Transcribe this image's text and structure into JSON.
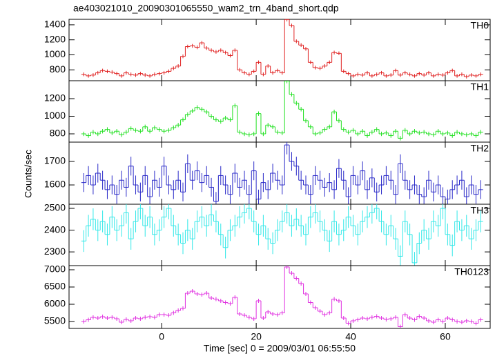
{
  "chart_data": {
    "type": "step",
    "title": "ae403021010_20090301065550_wam2_trn_4band_short.qdp",
    "xlabel": "Time [sec] 0 = 2009/03/01 06:55:50",
    "ylabel": "Counts/sec",
    "xlim": [
      -19.6,
      69.5
    ],
    "xticks": [
      0,
      20,
      40,
      60
    ],
    "x": [
      -16.5,
      -15.5,
      -14.5,
      -13.5,
      -12.5,
      -11.5,
      -10.5,
      -9.5,
      -8.5,
      -7.5,
      -6.5,
      -5.5,
      -4.5,
      -3.5,
      -2.5,
      -1.5,
      -0.5,
      0.5,
      1.5,
      2.5,
      3.5,
      4.5,
      5.5,
      6.5,
      7.5,
      8.5,
      9.5,
      10.5,
      11.5,
      12.5,
      13.5,
      14.5,
      15.5,
      16.5,
      17.5,
      18.5,
      19.5,
      20.5,
      21.5,
      22.5,
      23.5,
      24.5,
      25.5,
      26.5,
      27.5,
      28.5,
      29.5,
      30.5,
      31.5,
      32.5,
      33.5,
      34.5,
      35.5,
      36.5,
      37.5,
      38.5,
      39.5,
      40.5,
      41.5,
      42.5,
      43.5,
      44.5,
      45.5,
      46.5,
      47.5,
      48.5,
      49.5,
      50.5,
      51.5,
      52.5,
      53.5,
      54.5,
      55.5,
      56.5,
      57.5,
      58.5,
      59.5,
      60.5,
      61.5,
      62.5,
      63.5,
      64.5,
      65.5,
      66.5,
      67.5
    ],
    "panels": [
      {
        "name": "TH0",
        "color": "#e02020",
        "ylim": [
          655,
          1473
        ],
        "yticks": [
          800,
          1000,
          1200,
          1400
        ],
        "error": 25,
        "values": [
          740,
          720,
          730,
          760,
          790,
          780,
          770,
          750,
          720,
          760,
          740,
          730,
          750,
          730,
          720,
          740,
          750,
          760,
          780,
          820,
          850,
          980,
          1110,
          1120,
          1100,
          1160,
          1090,
          1060,
          1040,
          1060,
          1030,
          990,
          1060,
          800,
          760,
          740,
          780,
          900,
          740,
          850,
          760,
          790,
          760,
          1470,
          1390,
          1180,
          1130,
          1080,
          900,
          830,
          820,
          850,
          900,
          1030,
          1020,
          780,
          750,
          720,
          740,
          730,
          760,
          720,
          740,
          760,
          720,
          730,
          790,
          730,
          760,
          740,
          720,
          750,
          730,
          760,
          720,
          740,
          730,
          760,
          790,
          720,
          740,
          710,
          730,
          720,
          740
        ]
      },
      {
        "name": "TH1",
        "color": "#20e020",
        "ylim": [
          706,
          1404
        ],
        "yticks": [
          800,
          1000,
          1200
        ],
        "error": 25,
        "values": [
          800,
          780,
          820,
          800,
          830,
          850,
          810,
          830,
          790,
          820,
          860,
          840,
          830,
          880,
          830,
          870,
          850,
          830,
          840,
          870,
          900,
          960,
          1020,
          1060,
          1100,
          1080,
          1050,
          1000,
          960,
          940,
          980,
          960,
          1120,
          820,
          800,
          790,
          800,
          1030,
          800,
          900,
          880,
          820,
          810,
          1400,
          1250,
          1150,
          1080,
          950,
          880,
          800,
          810,
          850,
          880,
          1050,
          950,
          850,
          820,
          840,
          800,
          830,
          780,
          820,
          850,
          800,
          810,
          780,
          830,
          750,
          840,
          800,
          830,
          810,
          820,
          800,
          790,
          830,
          800,
          810,
          780,
          820,
          800,
          790,
          800,
          780,
          820
        ]
      },
      {
        "name": "TH2",
        "color": "#2828c8",
        "ylim": [
          1518,
          1782
        ],
        "yticks": [
          1600,
          1700
        ],
        "error": 40,
        "values": [
          1610,
          1640,
          1600,
          1650,
          1620,
          1580,
          1600,
          1560,
          1620,
          1590,
          1680,
          1600,
          1570,
          1640,
          1550,
          1620,
          1590,
          1680,
          1600,
          1580,
          1620,
          1570,
          1690,
          1620,
          1660,
          1610,
          1640,
          1590,
          1530,
          1640,
          1600,
          1560,
          1650,
          1590,
          1620,
          1560,
          1660,
          1540,
          1610,
          1580,
          1650,
          1620,
          1600,
          1770,
          1700,
          1680,
          1620,
          1600,
          1560,
          1640,
          1620,
          1590,
          1610,
          1580,
          1670,
          1620,
          1550,
          1640,
          1600,
          1660,
          1580,
          1630,
          1570,
          1600,
          1640,
          1620,
          1560,
          1690,
          1620,
          1580,
          1600,
          1560,
          1550,
          1620,
          1570,
          1600,
          1550,
          1540,
          1580,
          1600,
          1620,
          1550,
          1600,
          1560,
          1580
        ]
      },
      {
        "name": "TH3",
        "color": "#30e8e8",
        "ylim": [
          2237,
          2519
        ],
        "yticks": [
          2300,
          2400,
          2500
        ],
        "error": 50,
        "values": [
          2350,
          2420,
          2450,
          2400,
          2440,
          2380,
          2460,
          2400,
          2420,
          2480,
          2360,
          2440,
          2500,
          2420,
          2460,
          2380,
          2400,
          2460,
          2500,
          2420,
          2380,
          2340,
          2400,
          2360,
          2440,
          2460,
          2420,
          2470,
          2440,
          2380,
          2320,
          2400,
          2420,
          2460,
          2480,
          2500,
          2440,
          2380,
          2420,
          2360,
          2340,
          2400,
          2440,
          2480,
          2420,
          2450,
          2420,
          2380,
          2460,
          2480,
          2440,
          2400,
          2350,
          2440,
          2380,
          2400,
          2460,
          2420,
          2380,
          2440,
          2460,
          2480,
          2500,
          2440,
          2380,
          2420,
          2360,
          2280,
          2440,
          2380,
          2250,
          2340,
          2400,
          2360,
          2440,
          2420,
          2500,
          2380,
          2330,
          2440,
          2400,
          2420,
          2360,
          2400,
          2440
        ]
      },
      {
        "name": "TH0123",
        "color": "#e030e0",
        "ylim": [
          5300,
          7120
        ],
        "yticks": [
          5500,
          6000,
          6500,
          7000
        ],
        "error": 60,
        "values": [
          5500,
          5550,
          5620,
          5600,
          5640,
          5600,
          5620,
          5580,
          5480,
          5560,
          5520,
          5600,
          5580,
          5620,
          5640,
          5620,
          5700,
          5700,
          5680,
          5750,
          5820,
          5880,
          6320,
          6380,
          6300,
          6280,
          6320,
          6180,
          6150,
          6100,
          6050,
          6020,
          6200,
          5720,
          5680,
          5620,
          5580,
          6100,
          5600,
          5780,
          5720,
          5700,
          5750,
          7080,
          6900,
          6750,
          6600,
          6300,
          6050,
          5900,
          5800,
          5700,
          5750,
          6150,
          6100,
          5600,
          5450,
          5520,
          5550,
          5600,
          5580,
          5620,
          5650,
          5600,
          5560,
          5580,
          5620,
          5350,
          5700,
          5600,
          5550,
          5650,
          5600,
          5520,
          5480,
          5550,
          5500,
          5600,
          5550,
          5500,
          5480,
          5520,
          5500,
          5450,
          5550
        ]
      }
    ]
  }
}
